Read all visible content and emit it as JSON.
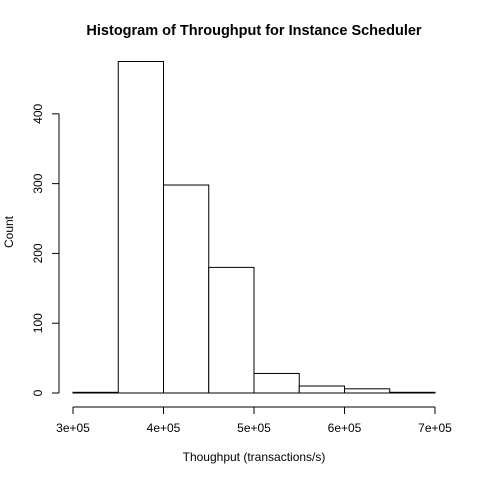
{
  "chart_data": {
    "type": "bar",
    "title": "Histogram of Throughput for Instance Scheduler",
    "xlabel": "Thoughput (transactions/s)",
    "ylabel": "Count",
    "bins": [
      {
        "start": 300000,
        "end": 350000,
        "count": 1
      },
      {
        "start": 350000,
        "end": 400000,
        "count": 475
      },
      {
        "start": 400000,
        "end": 450000,
        "count": 298
      },
      {
        "start": 450000,
        "end": 500000,
        "count": 180
      },
      {
        "start": 500000,
        "end": 550000,
        "count": 28
      },
      {
        "start": 550000,
        "end": 600000,
        "count": 10
      },
      {
        "start": 600000,
        "end": 650000,
        "count": 6
      },
      {
        "start": 650000,
        "end": 700000,
        "count": 1
      }
    ],
    "xlim": [
      300000,
      700000
    ],
    "ylim": [
      0,
      480
    ],
    "x_ticks": [
      {
        "value": 300000,
        "label": "3e+05"
      },
      {
        "value": 400000,
        "label": "4e+05"
      },
      {
        "value": 500000,
        "label": "5e+05"
      },
      {
        "value": 600000,
        "label": "6e+05"
      },
      {
        "value": 700000,
        "label": "7e+05"
      }
    ],
    "y_ticks": [
      {
        "value": 0,
        "label": "0"
      },
      {
        "value": 100,
        "label": "100"
      },
      {
        "value": 200,
        "label": "200"
      },
      {
        "value": 300,
        "label": "300"
      },
      {
        "value": 400,
        "label": "400"
      }
    ],
    "grid": false,
    "bar_fill": "#ffffff",
    "bar_stroke": "#000000"
  }
}
